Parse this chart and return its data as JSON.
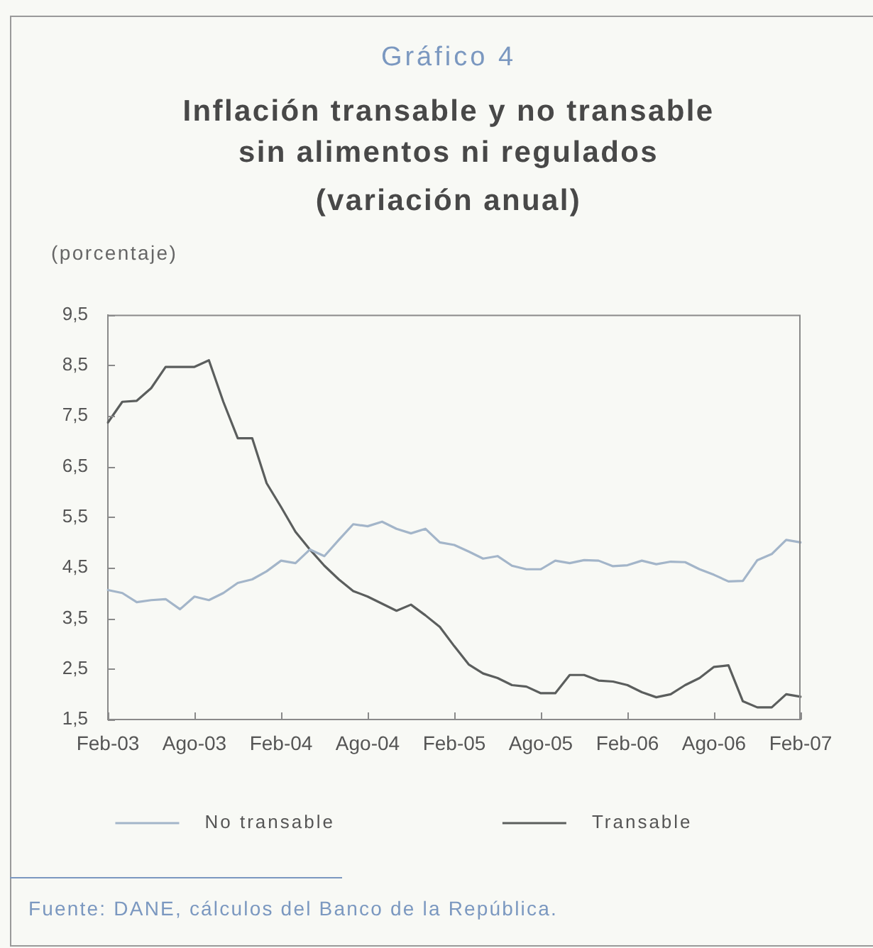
{
  "chart_data": {
    "type": "line",
    "annotations": [
      "Gráfico 4",
      "Fuente: DANE, cálculos del Banco de la República."
    ],
    "title": "Inflación transable y no transable sin alimentos ni regulados",
    "subtitle": "(variación anual)",
    "ylabel": "(porcentaje)",
    "categories": [
      "Feb-03",
      null,
      null,
      null,
      null,
      null,
      "Ago-03",
      null,
      null,
      null,
      null,
      null,
      "Feb-04",
      null,
      null,
      null,
      null,
      null,
      "Ago-04",
      null,
      null,
      null,
      null,
      null,
      "Feb-05",
      null,
      null,
      null,
      null,
      null,
      "Ago-05",
      null,
      null,
      null,
      null,
      null,
      "Feb-06",
      null,
      null,
      null,
      null,
      null,
      "Ago-06",
      null,
      null,
      null,
      null,
      null,
      "Feb-07"
    ],
    "series": [
      {
        "name": "No transable",
        "color": "#a3b5c9",
        "values": [
          4.06,
          4.0,
          3.82,
          3.86,
          3.88,
          3.68,
          3.93,
          3.86,
          4.0,
          4.2,
          4.27,
          4.43,
          4.64,
          4.59,
          4.86,
          4.73,
          5.05,
          5.36,
          5.32,
          5.41,
          5.27,
          5.18,
          5.27,
          5.0,
          4.95,
          4.82,
          4.68,
          4.73,
          4.54,
          4.47,
          4.47,
          4.64,
          4.59,
          4.65,
          4.64,
          4.53,
          4.55,
          4.64,
          4.57,
          4.62,
          4.61,
          4.47,
          4.36,
          4.23,
          4.24,
          4.65,
          4.77,
          5.05,
          5.0
        ]
      },
      {
        "name": "Transable",
        "color": "#5b5e5d",
        "values": [
          7.37,
          7.78,
          7.8,
          8.05,
          8.47,
          8.47,
          8.47,
          8.6,
          7.78,
          7.06,
          7.06,
          6.17,
          5.7,
          5.21,
          4.86,
          4.54,
          4.27,
          4.04,
          3.93,
          3.79,
          3.65,
          3.77,
          3.56,
          3.33,
          2.95,
          2.59,
          2.41,
          2.32,
          2.18,
          2.15,
          2.02,
          2.02,
          2.38,
          2.38,
          2.27,
          2.25,
          2.18,
          2.04,
          1.94,
          2.0,
          2.18,
          2.32,
          2.54,
          2.57,
          1.86,
          1.74,
          1.74,
          2.0,
          1.95
        ]
      }
    ],
    "ylim": [
      1.5,
      9.5
    ],
    "yticks": [
      {
        "value": 1.5,
        "label": "1,5"
      },
      {
        "value": 2.5,
        "label": "2,5"
      },
      {
        "value": 3.5,
        "label": "3,5"
      },
      {
        "value": 4.5,
        "label": "4,5"
      },
      {
        "value": 5.5,
        "label": "5,5"
      },
      {
        "value": 6.5,
        "label": "6,5"
      },
      {
        "value": 7.5,
        "label": "7,5"
      },
      {
        "value": 8.5,
        "label": "8,5"
      },
      {
        "value": 9.5,
        "label": "9,5"
      }
    ],
    "legend": "bottom",
    "line_style": "solid"
  }
}
